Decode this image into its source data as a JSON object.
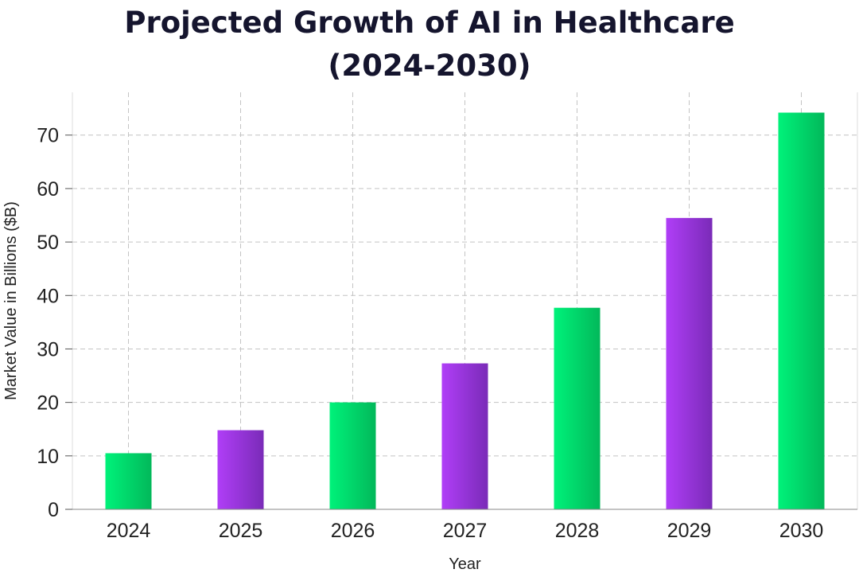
{
  "chart_data": {
    "type": "bar",
    "title_line1": "Projected Growth of AI in Healthcare",
    "title_line2": "(2024-2030)",
    "xlabel": "Year",
    "ylabel": "Market Value in Billions ($B)",
    "categories": [
      "2024",
      "2025",
      "2026",
      "2027",
      "2028",
      "2029",
      "2030"
    ],
    "values": [
      10.5,
      14.8,
      20.0,
      27.3,
      37.7,
      54.5,
      74.2
    ],
    "bar_colors": [
      "green",
      "purple",
      "green",
      "purple",
      "green",
      "purple",
      "green"
    ],
    "yticks": [
      0,
      10,
      20,
      30,
      40,
      50,
      60,
      70
    ],
    "ylim": [
      0,
      78
    ],
    "grid": true,
    "legend": "none"
  },
  "colors": {
    "green_light": "#00f27a",
    "green_dark": "#02b85a",
    "purple_light": "#b03ef7",
    "purple_dark": "#7a2bb8",
    "text": "#222222",
    "title": "#15152e",
    "grid": "#c4c4c4"
  }
}
